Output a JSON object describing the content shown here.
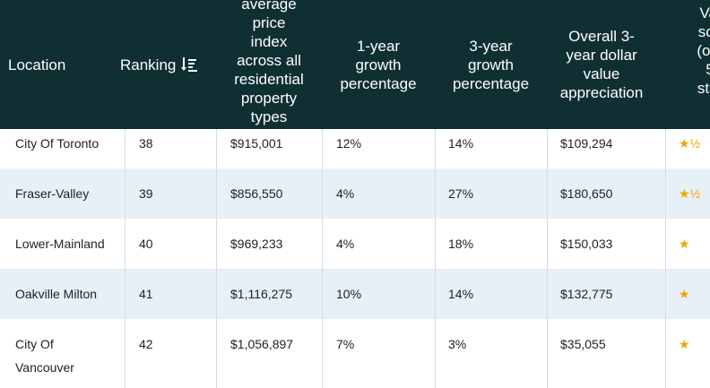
{
  "table": {
    "headers": {
      "location": "Location",
      "ranking": "Ranking",
      "avg_price": "average price index across all residential property types",
      "avg_price_lines": [
        "average",
        "price",
        "index",
        "across all",
        "residential",
        "property",
        "types"
      ],
      "one_year": [
        "1-year",
        "growth",
        "percentage"
      ],
      "three_year": [
        "3-year",
        "growth",
        "percentage"
      ],
      "overall": [
        "Overall 3-",
        "year dollar",
        "value",
        "appreciation"
      ],
      "value_score": [
        "Val",
        "sco",
        "(out",
        "5",
        "star"
      ]
    },
    "sort_icon": "sort-descending-icon",
    "rows": [
      {
        "location": [
          "City Of Toronto"
        ],
        "ranking": "38",
        "avg_price": "$915,001",
        "one_year": "12%",
        "three_year": "14%",
        "overall": "$109,294",
        "value_score": "★½",
        "stars": 1.5
      },
      {
        "location": [
          "Fraser-Valley"
        ],
        "ranking": "39",
        "avg_price": "$856,550",
        "one_year": "4%",
        "three_year": "27%",
        "overall": "$180,650",
        "value_score": "★½",
        "stars": 1.5
      },
      {
        "location": [
          "Lower-Mainland"
        ],
        "ranking": "40",
        "avg_price": "$969,233",
        "one_year": "4%",
        "three_year": "18%",
        "overall": "$150,033",
        "value_score": "★",
        "stars": 1
      },
      {
        "location": [
          "Oakville Milton"
        ],
        "ranking": "41",
        "avg_price": "$1,116,275",
        "one_year": "10%",
        "three_year": "14%",
        "overall": "$132,775",
        "value_score": "★",
        "stars": 1
      },
      {
        "location": [
          "City Of",
          "Vancouver"
        ],
        "ranking": "42",
        "avg_price": "$1,056,897",
        "one_year": "7%",
        "three_year": "3%",
        "overall": "$35,055",
        "value_score": "★",
        "stars": 1
      }
    ],
    "colors": {
      "header_bg": "#0f2f33",
      "alt_row_bg": "#e7f0f7",
      "star": "#f0a500"
    }
  }
}
